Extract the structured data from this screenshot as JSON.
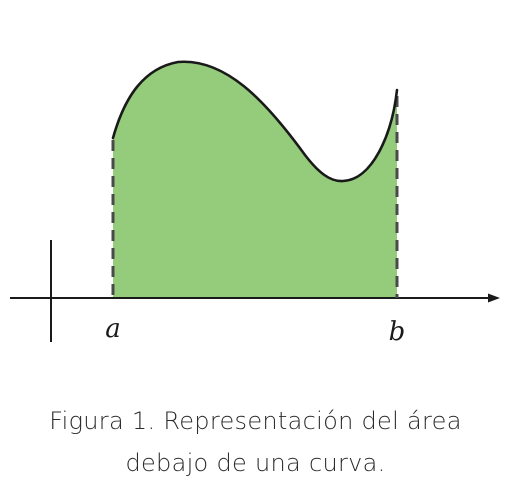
{
  "figure": {
    "label_a": "a",
    "label_b": "b",
    "fill_color": "#94cc7c",
    "curve_color": "#1a1a1a",
    "axis_color": "#1a1a1a",
    "dash_color": "#4a4a4a"
  },
  "caption": {
    "line1": "Figura 1. Representación del área",
    "line2": "debajo de una curva."
  }
}
